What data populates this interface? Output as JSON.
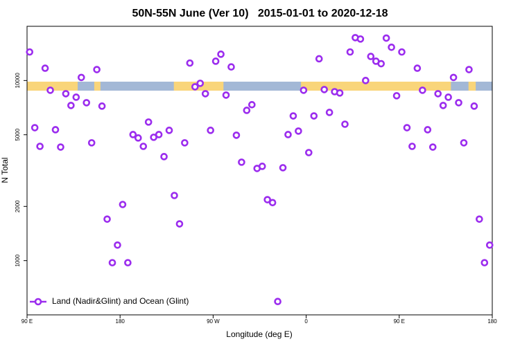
{
  "chart_data": {
    "type": "scatter",
    "title": "50N-55N June (Ver 10)   2015-01-01 to 2020-12-18",
    "xlabel": "Longitude (deg E)",
    "ylabel": "N Total",
    "xlim": [
      90,
      540
    ],
    "ylim": [
      500,
      20000
    ],
    "ylog": true,
    "legend": "bottom-left",
    "xticks": [
      {
        "value": 90,
        "label": "90 E"
      },
      180,
      {
        "value": 270,
        "label": "90 W"
      },
      {
        "value": 360,
        "label": "0"
      },
      {
        "value": 450,
        "label": "90 E"
      },
      {
        "value": 540,
        "label": "180"
      }
    ],
    "yticks": [
      1000,
      2000,
      5000,
      10000
    ],
    "land": [
      [
        90,
        139
      ],
      [
        155,
        161
      ],
      [
        232,
        280
      ],
      [
        355,
        500
      ],
      [
        517,
        524
      ]
    ],
    "land_color": "#f9d57a",
    "ocean_color": "#a3b8d6",
    "series": [
      {
        "name": "Land (Nadir&Glint) and Ocean (Glint)",
        "color": "#9b2cee",
        "x": [
          92.5,
          97.5,
          102.5,
          107.5,
          112.5,
          117.5,
          122.5,
          127.5,
          132.5,
          137.5,
          142.5,
          147.5,
          152.5,
          157.5,
          162.5,
          167.5,
          172.5,
          177.5,
          182.5,
          187.5,
          192.5,
          197.5,
          202.5,
          207.5,
          212.5,
          217.5,
          222.5,
          227.5,
          232.5,
          237.5,
          242.5,
          247.5,
          252.5,
          257.5,
          262.5,
          267.5,
          272.5,
          277.5,
          282.5,
          287.5,
          292.5,
          297.5,
          302.5,
          307.5,
          312.5,
          317.5,
          322.5,
          327.5,
          332.5,
          337.5,
          342.5,
          347.5,
          352.5,
          357.5,
          362.5,
          367.5,
          372.5,
          377.5,
          382.5,
          387.5,
          392.5,
          397.5,
          402.5,
          407.5,
          412.5,
          417.5,
          422.5,
          427.5,
          432.5,
          437.5,
          442.5,
          447.5,
          452.5,
          457.5,
          462.5,
          467.5,
          472.5,
          477.5,
          482.5,
          487.5,
          492.5,
          497.5,
          502.5,
          507.5,
          512.5,
          517.5,
          522.5,
          527.5,
          532.5,
          537.5
        ],
        "values": [
          14400,
          5470,
          4310,
          11700,
          8830,
          5330,
          4270,
          8450,
          7270,
          8080,
          10400,
          7530,
          4510,
          11500,
          7210,
          1700,
          974,
          1220,
          2050,
          974,
          5010,
          4800,
          4310,
          5880,
          4840,
          5010,
          3780,
          5290,
          2300,
          1600,
          4510,
          12500,
          9230,
          9650,
          8450,
          5290,
          12800,
          14000,
          8300,
          11900,
          4970,
          3520,
          6830,
          7340,
          3250,
          3340,
          2180,
          2100,
          593,
          3280,
          5010,
          6360,
          5240,
          8830,
          3980,
          6360,
          13200,
          8910,
          6650,
          8670,
          8530,
          5720,
          14400,
          17300,
          17000,
          10000,
          13600,
          12800,
          12400,
          17200,
          15300,
          8230,
          14400,
          5470,
          4310,
          11700,
          8830,
          5330,
          4270,
          8450,
          7270,
          8080,
          10400,
          7530,
          4510,
          11500,
          7210,
          1700,
          974,
          1220
        ]
      }
    ]
  }
}
